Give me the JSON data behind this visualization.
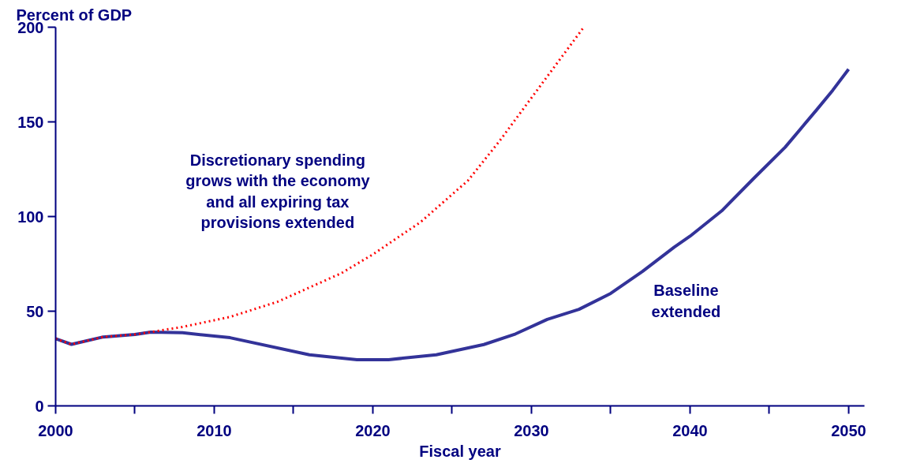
{
  "chart_data": {
    "type": "line",
    "ylabel": "Percent of GDP",
    "xlabel": "Fiscal year",
    "xlim": [
      2000,
      2051
    ],
    "ylim": [
      0,
      200
    ],
    "xticks": [
      2000,
      {
        "value": 2005,
        "label": null
      },
      2010,
      {
        "value": 2015,
        "label": null
      },
      2020,
      {
        "value": 2025,
        "label": null
      },
      2030,
      {
        "value": 2035,
        "label": null
      },
      2040,
      {
        "value": 2045,
        "label": null
      },
      2050
    ],
    "yticks": [
      0,
      50,
      100,
      150,
      200
    ],
    "grid": false,
    "legend": false,
    "series": [
      {
        "name": "Baseline\nextended",
        "color": "#333399",
        "line_style": "solid",
        "x": [
          2000,
          2001,
          2003,
          2005,
          2006,
          2008,
          2011,
          2016,
          2019,
          2021,
          2024,
          2027,
          2029,
          2031,
          2033,
          2035,
          2037,
          2039,
          2040,
          2042,
          2044,
          2046,
          2048,
          2049,
          2050
        ],
        "values": [
          35.5,
          32.5,
          36.4,
          37.7,
          39,
          38.6,
          36,
          27,
          24.4,
          24.4,
          27,
          32.4,
          38,
          45.7,
          51,
          59.4,
          71,
          83.8,
          89.6,
          103,
          120,
          136.6,
          156.5,
          166.7,
          177.8
        ]
      },
      {
        "name": "Discretionary spending\ngrows with the economy\nand all expiring tax\nprovisions extended",
        "color": "#ff0000",
        "line_style": "dotted",
        "x": [
          2000,
          2001,
          2003,
          2005,
          2006,
          2008,
          2011,
          2014,
          2018,
          2020,
          2023,
          2026,
          2028,
          2031,
          2033.3
        ],
        "values": [
          35.5,
          32.5,
          36.4,
          37.7,
          39,
          41.7,
          47,
          55,
          70,
          80,
          97,
          119,
          140,
          174,
          200
        ]
      }
    ]
  }
}
